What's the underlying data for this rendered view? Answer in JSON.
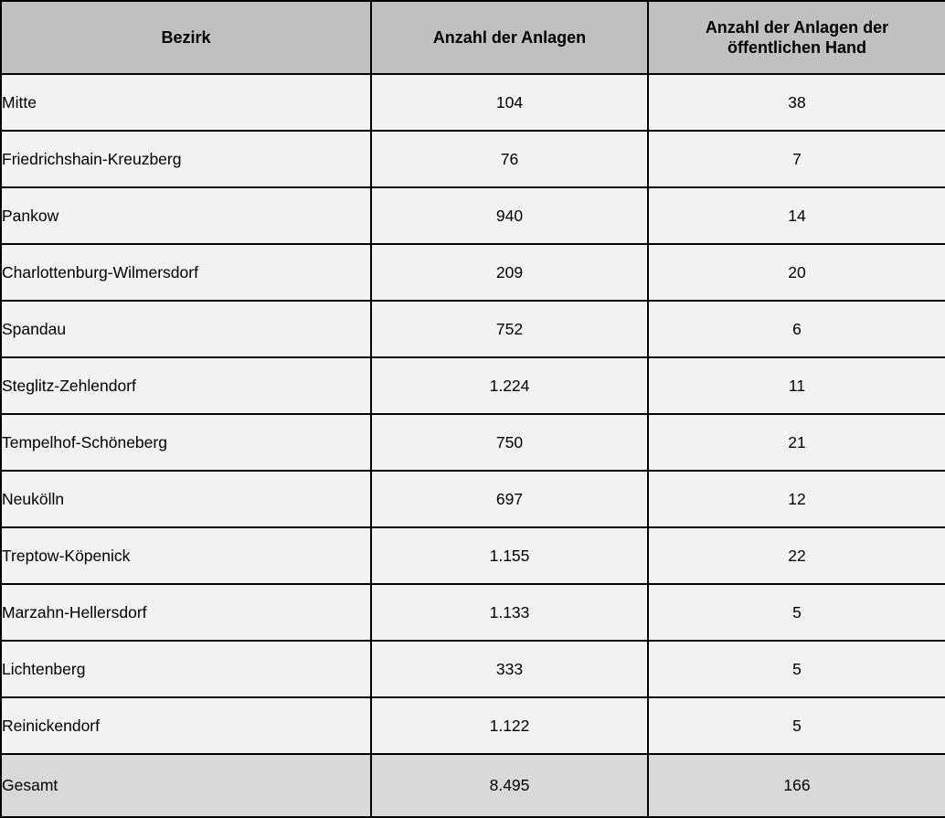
{
  "table": {
    "columns": [
      "Bezirk",
      "Anzahl der Anlagen",
      "Anzahl der Anlagen der öffentlichen Hand"
    ],
    "rows": [
      [
        "Mitte",
        "104",
        "38"
      ],
      [
        "Friedrichshain-Kreuzberg",
        "76",
        "7"
      ],
      [
        "Pankow",
        "940",
        "14"
      ],
      [
        "Charlottenburg-Wilmersdorf",
        "209",
        "20"
      ],
      [
        "Spandau",
        "752",
        "6"
      ],
      [
        "Steglitz-Zehlendorf",
        "1.224",
        "11"
      ],
      [
        "Tempelhof-Schöneberg",
        "750",
        "21"
      ],
      [
        "Neukölln",
        "697",
        "12"
      ],
      [
        "Treptow-Köpenick",
        "1.155",
        "22"
      ],
      [
        "Marzahn-Hellersdorf",
        "1.133",
        "5"
      ],
      [
        "Lichtenberg",
        "333",
        "5"
      ],
      [
        "Reinickendorf",
        "1.122",
        "5"
      ]
    ],
    "footer": [
      "Gesamt",
      "8.495",
      "166"
    ]
  },
  "colors": {
    "header_bg": "#c0c0c0",
    "row_bg": "#f2f2f2",
    "footer_bg": "#d9d9d9",
    "border": "#000000",
    "text": "#000000"
  },
  "chart_data": {
    "type": "table",
    "title": "",
    "columns": [
      "Bezirk",
      "Anzahl der Anlagen",
      "Anzahl der Anlagen der öffentlichen Hand"
    ],
    "categories": [
      "Mitte",
      "Friedrichshain-Kreuzberg",
      "Pankow",
      "Charlottenburg-Wilmersdorf",
      "Spandau",
      "Steglitz-Zehlendorf",
      "Tempelhof-Schöneberg",
      "Neukölln",
      "Treptow-Köpenick",
      "Marzahn-Hellersdorf",
      "Lichtenberg",
      "Reinickendorf"
    ],
    "series": [
      {
        "name": "Anzahl der Anlagen",
        "values": [
          104,
          76,
          940,
          209,
          752,
          1224,
          750,
          697,
          1155,
          1133,
          333,
          1122
        ]
      },
      {
        "name": "Anzahl der Anlagen der öffentlichen Hand",
        "values": [
          38,
          7,
          14,
          20,
          6,
          11,
          21,
          12,
          22,
          5,
          5,
          5
        ]
      }
    ],
    "totals": {
      "label": "Gesamt",
      "anzahl_der_anlagen": 8495,
      "anzahl_der_anlagen_der_oeffentlichen_hand": 166
    }
  }
}
